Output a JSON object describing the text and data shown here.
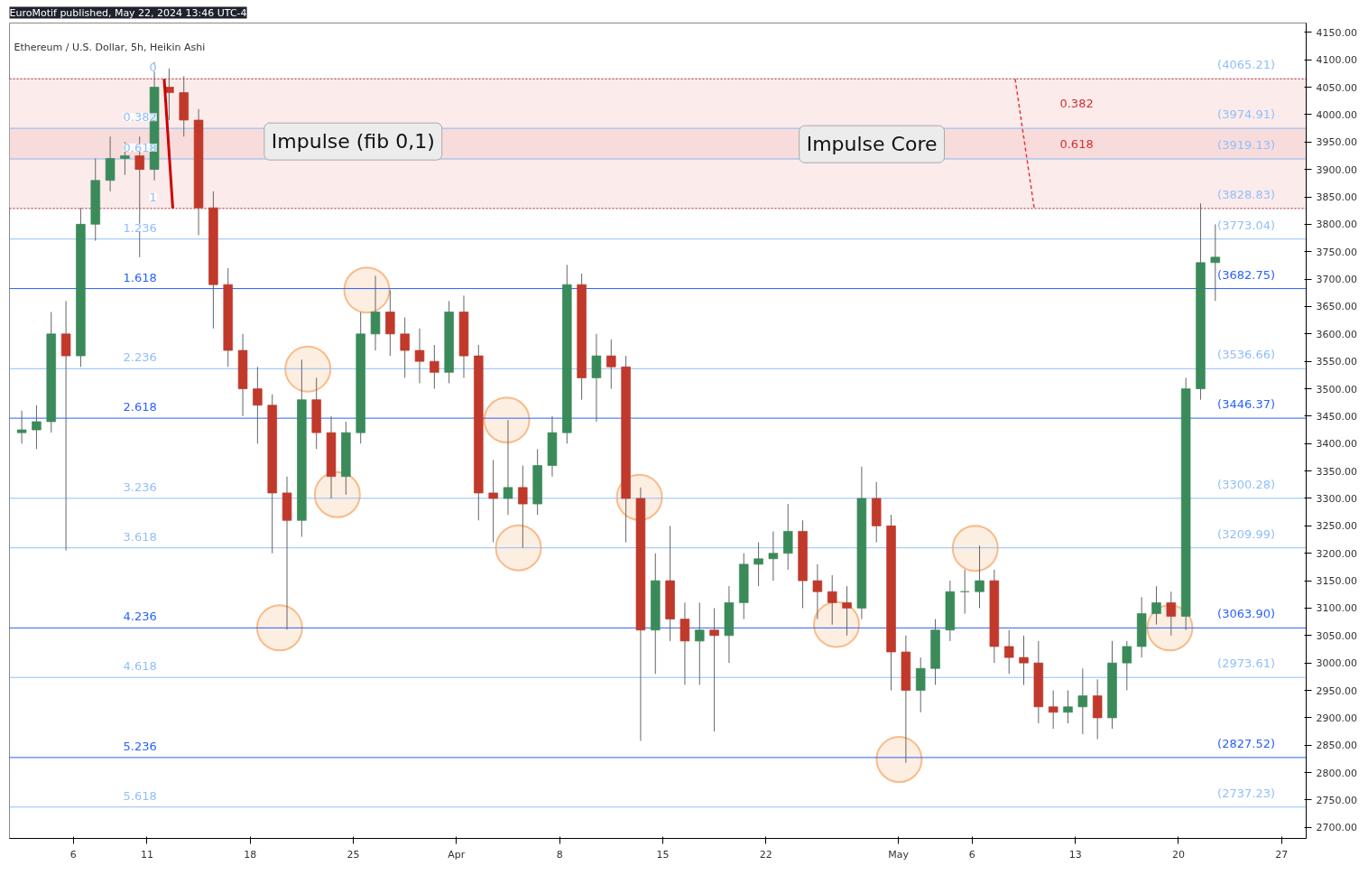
{
  "chart_data": {
    "type": "candlestick",
    "title": "Ethereum / U.S. Dollar, 5h, Heikin Ashi",
    "annotations": [
      "EuroMotif published, May 22, 2024 13:46 UTC-4",
      "Impulse (fib 0,1)",
      "Impulse Core",
      {
        "text": "0",
        "x": "2024-03-11T16:00",
        "y": 4065.21
      },
      {
        "text": "0.382",
        "x": "2024-03-11T16:00",
        "y": 3974.91
      },
      {
        "text": "0.618",
        "x": "2024-03-11T16:00",
        "y": 3919.13
      },
      {
        "text": "1",
        "x": "2024-03-11T16:00",
        "y": 3828.83
      },
      {
        "text": "1.236",
        "x": "2024-03-11T16:00",
        "y": 3773.04
      },
      {
        "text": "1.618",
        "x": "2024-03-11T16:00",
        "y": 3682.75
      },
      {
        "text": "2.236",
        "x": "2024-03-11T16:00",
        "y": 3536.66
      },
      {
        "text": "2.618",
        "x": "2024-03-11T16:00",
        "y": 3446.37
      },
      {
        "text": "3.236",
        "x": "2024-03-11T16:00",
        "y": 3300.28
      },
      {
        "text": "3.618",
        "x": "2024-03-11T16:00",
        "y": 3209.99
      },
      {
        "text": "4.236",
        "x": "2024-03-11T16:00",
        "y": 3063.9
      },
      {
        "text": "4.618",
        "x": "2024-03-11T16:00",
        "y": 2973.61
      },
      {
        "text": "5.236",
        "x": "2024-03-11T16:00",
        "y": 2827.52
      },
      {
        "text": "5.618",
        "x": "2024-03-11T16:00",
        "y": 2737.23
      }
    ],
    "x": [
      "2024-03-02T12:00",
      "2024-03-03T12:00",
      "2024-03-04T12:00",
      "2024-03-05T12:00",
      "2024-03-06T12:00",
      "2024-03-07T12:00",
      "2024-03-08T12:00",
      "2024-03-09T12:00",
      "2024-03-10T12:00",
      "2024-03-11T12:00",
      "2024-03-12T12:00",
      "2024-03-13T12:00",
      "2024-03-14T12:00",
      "2024-03-15T12:00",
      "2024-03-16T12:00",
      "2024-03-17T12:00",
      "2024-03-18T12:00",
      "2024-03-19T12:00",
      "2024-03-20T12:00",
      "2024-03-21T12:00",
      "2024-03-22T12:00",
      "2024-03-23T12:00",
      "2024-03-24T12:00",
      "2024-03-25T12:00",
      "2024-03-26T12:00",
      "2024-03-27T12:00",
      "2024-03-28T12:00",
      "2024-03-29T12:00",
      "2024-03-30T12:00",
      "2024-03-31T12:00",
      "2024-04-01T12:00",
      "2024-04-02T12:00",
      "2024-04-03T12:00",
      "2024-04-04T12:00",
      "2024-04-05T12:00",
      "2024-04-06T12:00",
      "2024-04-07T12:00",
      "2024-04-08T12:00",
      "2024-04-09T12:00",
      "2024-04-10T12:00",
      "2024-04-11T12:00",
      "2024-04-12T12:00",
      "2024-04-13T12:00",
      "2024-04-14T12:00",
      "2024-04-15T12:00",
      "2024-04-16T12:00",
      "2024-04-17T12:00",
      "2024-04-18T12:00",
      "2024-04-19T12:00",
      "2024-04-20T12:00",
      "2024-04-21T12:00",
      "2024-04-22T12:00",
      "2024-04-23T12:00",
      "2024-04-24T12:00",
      "2024-04-25T12:00",
      "2024-04-26T12:00",
      "2024-04-27T12:00",
      "2024-04-28T12:00",
      "2024-04-29T12:00",
      "2024-04-30T12:00",
      "2024-05-01T12:00",
      "2024-05-02T12:00",
      "2024-05-03T12:00",
      "2024-05-04T12:00",
      "2024-05-05T12:00",
      "2024-05-06T12:00",
      "2024-05-07T12:00",
      "2024-05-08T12:00",
      "2024-05-09T12:00",
      "2024-05-10T12:00",
      "2024-05-11T12:00",
      "2024-05-12T12:00",
      "2024-05-13T12:00",
      "2024-05-14T12:00",
      "2024-05-15T12:00",
      "2024-05-16T12:00",
      "2024-05-17T12:00",
      "2024-05-18T12:00",
      "2024-05-19T12:00",
      "2024-05-20T12:00",
      "2024-05-21T12:00",
      "2024-05-22T12:00"
    ],
    "ohlc": [
      [
        3420,
        3460,
        3400,
        3425
      ],
      [
        3425,
        3470,
        3390,
        3440
      ],
      [
        3440,
        3640,
        3420,
        3600
      ],
      [
        3600,
        3660,
        3205,
        3560
      ],
      [
        3560,
        3830,
        3540,
        3800
      ],
      [
        3800,
        3920,
        3770,
        3880
      ],
      [
        3880,
        3960,
        3860,
        3920
      ],
      [
        3920,
        3950,
        3890,
        3925
      ],
      [
        3925,
        3960,
        3740,
        3900
      ],
      [
        3900,
        4096,
        3880,
        4050
      ],
      [
        4050,
        4084,
        3990,
        4040
      ],
      [
        4040,
        4070,
        3960,
        3990
      ],
      [
        3990,
        4010,
        3780,
        3830
      ],
      [
        3830,
        3860,
        3610,
        3690
      ],
      [
        3690,
        3720,
        3540,
        3570
      ],
      [
        3570,
        3600,
        3450,
        3500
      ],
      [
        3500,
        3540,
        3400,
        3470
      ],
      [
        3470,
        3490,
        3200,
        3310
      ],
      [
        3310,
        3340,
        3061,
        3260
      ],
      [
        3260,
        3553,
        3230,
        3480
      ],
      [
        3480,
        3520,
        3390,
        3420
      ],
      [
        3420,
        3450,
        3300,
        3340
      ],
      [
        3340,
        3440,
        3307,
        3420
      ],
      [
        3420,
        3640,
        3400,
        3600
      ],
      [
        3600,
        3706,
        3570,
        3640
      ],
      [
        3640,
        3680,
        3560,
        3600
      ],
      [
        3600,
        3630,
        3520,
        3570
      ],
      [
        3570,
        3610,
        3510,
        3550
      ],
      [
        3550,
        3580,
        3500,
        3530
      ],
      [
        3530,
        3660,
        3510,
        3640
      ],
      [
        3640,
        3670,
        3520,
        3560
      ],
      [
        3560,
        3580,
        3260,
        3310
      ],
      [
        3310,
        3370,
        3220,
        3300
      ],
      [
        3300,
        3443,
        3270,
        3320
      ],
      [
        3320,
        3360,
        3210,
        3290
      ],
      [
        3290,
        3390,
        3270,
        3360
      ],
      [
        3360,
        3450,
        3340,
        3420
      ],
      [
        3420,
        3726,
        3400,
        3690
      ],
      [
        3690,
        3710,
        3480,
        3520
      ],
      [
        3520,
        3600,
        3440,
        3560
      ],
      [
        3560,
        3590,
        3500,
        3540
      ],
      [
        3540,
        3560,
        3220,
        3300
      ],
      [
        3300,
        3320,
        2858,
        3060
      ],
      [
        3060,
        3200,
        2980,
        3150
      ],
      [
        3150,
        3250,
        3040,
        3080
      ],
      [
        3080,
        3110,
        2960,
        3040
      ],
      [
        3040,
        3110,
        2960,
        3060
      ],
      [
        3060,
        3100,
        2875,
        3050
      ],
      [
        3050,
        3140,
        3000,
        3110
      ],
      [
        3110,
        3200,
        3080,
        3180
      ],
      [
        3180,
        3220,
        3140,
        3190
      ],
      [
        3190,
        3240,
        3150,
        3200
      ],
      [
        3200,
        3290,
        3170,
        3240
      ],
      [
        3240,
        3260,
        3100,
        3150
      ],
      [
        3150,
        3180,
        3080,
        3130
      ],
      [
        3130,
        3160,
        3070,
        3110
      ],
      [
        3110,
        3140,
        3050,
        3100
      ],
      [
        3100,
        3358,
        3080,
        3300
      ],
      [
        3300,
        3330,
        3220,
        3250
      ],
      [
        3250,
        3270,
        2950,
        3020
      ],
      [
        3020,
        3050,
        2818,
        2950
      ],
      [
        2950,
        3010,
        2910,
        2990
      ],
      [
        2990,
        3080,
        2960,
        3060
      ],
      [
        3060,
        3150,
        3040,
        3130
      ],
      [
        3130,
        3170,
        3090,
        3130
      ],
      [
        3130,
        3214,
        3100,
        3150
      ],
      [
        3150,
        3170,
        3000,
        3030
      ],
      [
        3030,
        3060,
        2980,
        3010
      ],
      [
        3010,
        3050,
        2960,
        3000
      ],
      [
        3000,
        3040,
        2890,
        2920
      ],
      [
        2920,
        2950,
        2880,
        2910
      ],
      [
        2910,
        2950,
        2890,
        2920
      ],
      [
        2920,
        2990,
        2870,
        2940
      ],
      [
        2940,
        2970,
        2861,
        2900
      ],
      [
        2900,
        3040,
        2880,
        3000
      ],
      [
        3000,
        3040,
        2950,
        3030
      ],
      [
        3030,
        3120,
        3010,
        3090
      ],
      [
        3090,
        3140,
        3070,
        3110
      ],
      [
        3110,
        3130,
        3050,
        3085
      ],
      [
        3085,
        3520,
        3060,
        3500
      ],
      [
        3500,
        3838,
        3480,
        3730
      ],
      [
        3730,
        3800,
        3660,
        3740
      ]
    ],
    "colors": [
      "#3b8a5a",
      "#3b8a5a",
      "#3b8a5a",
      "#c0392b",
      "#3b8a5a",
      "#3b8a5a",
      "#3b8a5a",
      "#3b8a5a",
      "#c0392b",
      "#3b8a5a",
      "#c0392b",
      "#c0392b",
      "#c0392b",
      "#c0392b",
      "#c0392b",
      "#c0392b",
      "#c0392b",
      "#c0392b",
      "#c0392b",
      "#3b8a5a",
      "#c0392b",
      "#c0392b",
      "#3b8a5a",
      "#3b8a5a",
      "#3b8a5a",
      "#c0392b",
      "#c0392b",
      "#c0392b",
      "#c0392b",
      "#3b8a5a",
      "#c0392b",
      "#c0392b",
      "#c0392b",
      "#3b8a5a",
      "#c0392b",
      "#3b8a5a",
      "#3b8a5a",
      "#3b8a5a",
      "#c0392b",
      "#3b8a5a",
      "#c0392b",
      "#c0392b",
      "#c0392b",
      "#3b8a5a",
      "#c0392b",
      "#c0392b",
      "#3b8a5a",
      "#c0392b",
      "#3b8a5a",
      "#3b8a5a",
      "#3b8a5a",
      "#3b8a5a",
      "#3b8a5a",
      "#c0392b",
      "#c0392b",
      "#c0392b",
      "#c0392b",
      "#3b8a5a",
      "#c0392b",
      "#c0392b",
      "#c0392b",
      "#3b8a5a",
      "#3b8a5a",
      "#3b8a5a",
      "#3b8a5a",
      "#3b8a5a",
      "#c0392b",
      "#c0392b",
      "#c0392b",
      "#c0392b",
      "#c0392b",
      "#3b8a5a",
      "#3b8a5a",
      "#c0392b",
      "#3b8a5a",
      "#3b8a5a",
      "#3b8a5a",
      "#3b8a5a",
      "#c0392b",
      "#3b8a5a",
      "#3b8a5a",
      "#3b8a5a"
    ],
    "series": [
      {
        "type": "line",
        "color": "#cc0000",
        "x": [
          "2024-03-12T04:00",
          "2024-03-12T18:00"
        ],
        "values": [
          4065,
          3829
        ],
        "line_style": "solid"
      },
      {
        "type": "line",
        "color": "#e53935",
        "x": [
          "2024-05-08T22:00",
          "2024-05-10T05:00"
        ],
        "values": [
          4065,
          3829
        ],
        "line_style": "dashed"
      },
      {
        "type": "scatter",
        "color": "#f5a25d",
        "marker": "circle",
        "x": [
          "2024-03-20T00:00",
          "2024-03-21T22:00",
          "2024-03-23T22:00",
          "2024-03-25T22:00",
          "2024-04-04T10:00",
          "2024-04-05T05:00",
          "2024-04-13T10:00",
          "2024-04-26T19:00",
          "2024-05-01T01:00",
          "2024-05-06T05:00",
          "2024-05-19T10:00"
        ],
        "values": [
          3064,
          3536,
          3307,
          3680,
          3443,
          3210,
          3302,
          3070,
          2824,
          3209,
          3064
        ]
      }
    ],
    "ref_lines": [
      {
        "axis": "y",
        "value": 4065.21,
        "label": "(4065.21)",
        "color": "#b22833",
        "line_style": "dotted"
      },
      {
        "axis": "y",
        "value": 3974.91,
        "label": "(3974.91)",
        "color": "#90bff9"
      },
      {
        "axis": "y",
        "value": 3919.13,
        "label": "(3919.13)",
        "color": "#90bff9"
      },
      {
        "axis": "y",
        "value": 3828.83,
        "label": "(3828.83)",
        "color": "#b22833",
        "line_style": "dotted"
      },
      {
        "axis": "y",
        "value": 3773.04,
        "label": "(3773.04)",
        "color": "#90bff9"
      },
      {
        "axis": "y",
        "value": 3682.75,
        "label": "(3682.75)",
        "color": "#2962ff"
      },
      {
        "axis": "y",
        "value": 3536.66,
        "label": "(3536.66)",
        "color": "#90bff9"
      },
      {
        "axis": "y",
        "value": 3446.37,
        "label": "(3446.37)",
        "color": "#2962ff"
      },
      {
        "axis": "y",
        "value": 3300.28,
        "label": "(3300.28)",
        "color": "#90bff9"
      },
      {
        "axis": "y",
        "value": 3209.99,
        "label": "(3209.99)",
        "color": "#90bff9"
      },
      {
        "axis": "y",
        "value": 3063.9,
        "label": "(3063.90)",
        "color": "#2962ff"
      },
      {
        "axis": "y",
        "value": 2973.61,
        "label": "(2973.61)",
        "color": "#90bff9"
      },
      {
        "axis": "y",
        "value": 2827.52,
        "label": "(2827.52)",
        "color": "#2962ff"
      },
      {
        "axis": "y",
        "value": 2737.23,
        "label": "(2737.23)",
        "color": "#90bff9"
      }
    ],
    "bands": [
      {
        "axis": "y",
        "from": 3974.91,
        "to": 4065.21,
        "label": "0.382",
        "color": "#fbe6e6"
      },
      {
        "axis": "y",
        "from": 3919.13,
        "to": 3974.91,
        "label": "0.618",
        "color": "#f6d3d3"
      },
      {
        "axis": "y",
        "from": 3828.83,
        "to": 3919.13,
        "color": "#fbe6e6"
      }
    ],
    "xlim": [
      "2024-03-01T16:00",
      "2024-05-28T16:00"
    ],
    "xticks": [
      {
        "value": "2024-03-06",
        "label": "6"
      },
      {
        "value": "2024-03-11",
        "label": "11"
      },
      {
        "value": "2024-03-18",
        "label": "18"
      },
      {
        "value": "2024-03-25",
        "label": "25"
      },
      {
        "value": "2024-04-01",
        "label": "Apr"
      },
      {
        "value": "2024-04-08",
        "label": "8"
      },
      {
        "value": "2024-04-15",
        "label": "15"
      },
      {
        "value": "2024-04-22",
        "label": "22"
      },
      {
        "value": "2024-05-01",
        "label": "May"
      },
      {
        "value": "2024-05-06",
        "label": "6"
      },
      {
        "value": "2024-05-13",
        "label": "13"
      },
      {
        "value": "2024-05-20",
        "label": "20"
      },
      {
        "value": "2024-05-27",
        "label": "27"
      }
    ],
    "ylim": [
      2680,
      4167
    ],
    "yticks": [
      {
        "value": 2700,
        "label": "2700.00"
      },
      {
        "value": 2750,
        "label": "2750.00"
      },
      {
        "value": 2800,
        "label": "2800.00"
      },
      {
        "value": 2850,
        "label": "2850.00"
      },
      {
        "value": 2900,
        "label": "2900.00"
      },
      {
        "value": 2950,
        "label": "2950.00"
      },
      {
        "value": 3000,
        "label": "3000.00"
      },
      {
        "value": 3050,
        "label": "3050.00"
      },
      {
        "value": 3100,
        "label": "3100.00"
      },
      {
        "value": 3150,
        "label": "3150.00"
      },
      {
        "value": 3200,
        "label": "3200.00"
      },
      {
        "value": 3250,
        "label": "3250.00"
      },
      {
        "value": 3300,
        "label": "3300.00"
      },
      {
        "value": 3350,
        "label": "3350.00"
      },
      {
        "value": 3400,
        "label": "3400.00"
      },
      {
        "value": 3450,
        "label": "3450.00"
      },
      {
        "value": 3500,
        "label": "3500.00"
      },
      {
        "value": 3550,
        "label": "3550.00"
      },
      {
        "value": 3600,
        "label": "3600.00"
      },
      {
        "value": 3650,
        "label": "3650.00"
      },
      {
        "value": 3700,
        "label": "3700.00"
      },
      {
        "value": 3750,
        "label": "3750.00"
      },
      {
        "value": 3800,
        "label": "3800.00"
      },
      {
        "value": 3850,
        "label": "3850.00"
      },
      {
        "value": 3900,
        "label": "3900.00"
      },
      {
        "value": 3950,
        "label": "3950.00"
      },
      {
        "value": 4000,
        "label": "4000.00"
      },
      {
        "value": 4050,
        "label": "4050.00"
      },
      {
        "value": 4100,
        "label": "4100.00"
      },
      {
        "value": 4150,
        "label": "4150.00"
      }
    ],
    "grid": false
  }
}
